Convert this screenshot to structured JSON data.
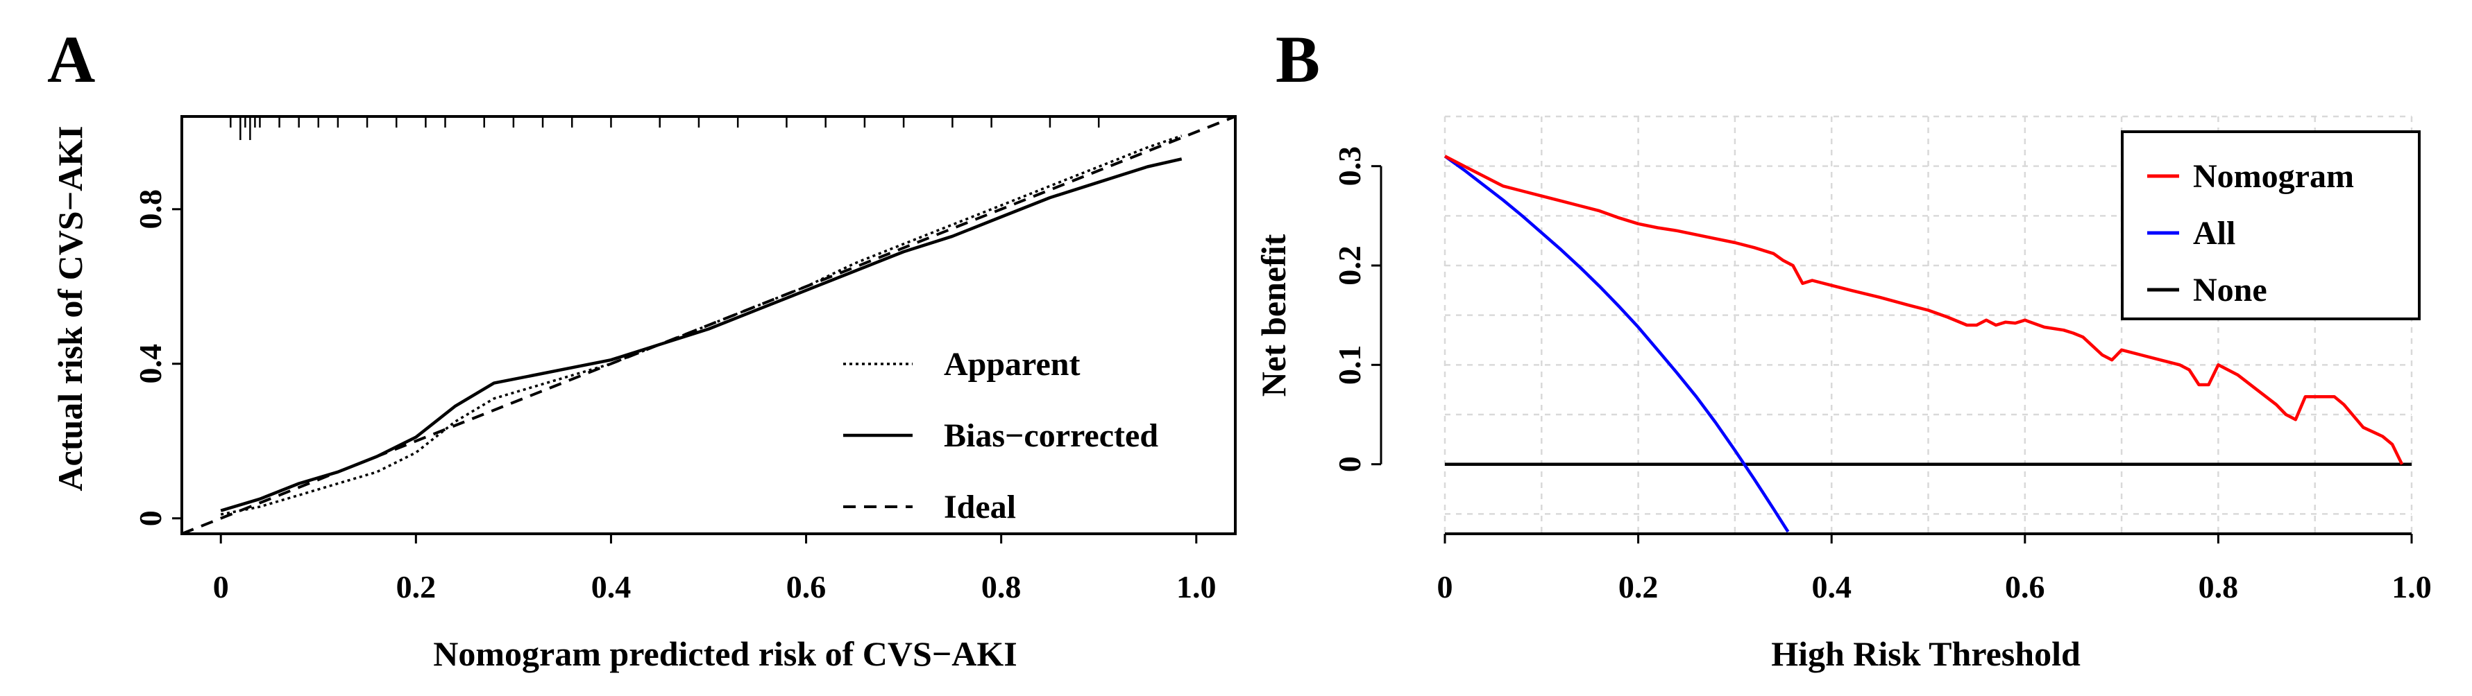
{
  "chart_data": [
    {
      "panel": "A",
      "type": "line",
      "xlabel": "Nomogram predicted risk of CVS−AKI",
      "ylabel": "Actual risk of CVS−AKI",
      "xlim": [
        -0.04,
        1.04
      ],
      "ylim": [
        -0.04,
        1.04
      ],
      "xticks": [
        "0",
        "0.2",
        "0.4",
        "0.6",
        "0.8",
        "1.0"
      ],
      "xtick_values": [
        0,
        0.2,
        0.4,
        0.6,
        0.8,
        1.0
      ],
      "yticks": [
        "0",
        "0.4",
        "0.8"
      ],
      "ytick_values": [
        0,
        0.4,
        0.8
      ],
      "legend": {
        "position": "bottom-right",
        "entries": [
          "Apparent",
          "Bias−corrected",
          "Ideal"
        ]
      },
      "series": [
        {
          "name": "Apparent",
          "style": "dotted",
          "x": [
            0,
            0.04,
            0.08,
            0.12,
            0.16,
            0.2,
            0.24,
            0.28,
            0.32,
            0.36,
            0.4,
            0.45,
            0.5,
            0.55,
            0.6,
            0.65,
            0.7,
            0.75,
            0.8,
            0.85,
            0.9,
            0.95,
            0.985
          ],
          "values": [
            0.01,
            0.03,
            0.06,
            0.09,
            0.12,
            0.17,
            0.25,
            0.31,
            0.34,
            0.37,
            0.4,
            0.45,
            0.5,
            0.55,
            0.6,
            0.66,
            0.71,
            0.76,
            0.81,
            0.86,
            0.91,
            0.96,
            0.99
          ]
        },
        {
          "name": "Bias−corrected",
          "style": "solid",
          "x": [
            0,
            0.04,
            0.08,
            0.12,
            0.16,
            0.2,
            0.24,
            0.28,
            0.32,
            0.36,
            0.4,
            0.45,
            0.5,
            0.55,
            0.6,
            0.65,
            0.7,
            0.75,
            0.8,
            0.85,
            0.9,
            0.95,
            0.985
          ],
          "values": [
            0.02,
            0.05,
            0.09,
            0.12,
            0.16,
            0.21,
            0.29,
            0.35,
            0.37,
            0.39,
            0.41,
            0.45,
            0.49,
            0.54,
            0.59,
            0.64,
            0.69,
            0.73,
            0.78,
            0.83,
            0.87,
            0.91,
            0.93
          ]
        },
        {
          "name": "Ideal",
          "style": "dashed",
          "x": [
            -0.04,
            1.04
          ],
          "values": [
            -0.04,
            1.04
          ]
        }
      ],
      "rug_x": [
        0.01,
        0.02,
        0.025,
        0.03,
        0.035,
        0.04,
        0.06,
        0.08,
        0.1,
        0.12,
        0.15,
        0.18,
        0.21,
        0.23,
        0.27,
        0.3,
        0.33,
        0.36,
        0.4,
        0.45,
        0.49,
        0.53,
        0.58,
        0.62,
        0.66,
        0.7,
        0.75,
        0.79,
        0.85,
        0.9
      ],
      "rug_long": [
        0.02,
        0.03
      ]
    },
    {
      "panel": "B",
      "type": "line",
      "xlabel": "High Risk Threshold",
      "ylabel": "Net benefit",
      "xlim": [
        0,
        1.0
      ],
      "ylim": [
        -0.07,
        0.35
      ],
      "xticks": [
        "0",
        "0.2",
        "0.4",
        "0.6",
        "0.8",
        "1.0"
      ],
      "xtick_values": [
        0,
        0.2,
        0.4,
        0.6,
        0.8,
        1.0
      ],
      "yticks": [
        "0",
        "0.1",
        "0.2",
        "0.3"
      ],
      "ytick_values": [
        0,
        0.1,
        0.2,
        0.3
      ],
      "grid": true,
      "legend": {
        "position": "top-right",
        "entries": [
          "Nomogram",
          "All",
          "None"
        ]
      },
      "series": [
        {
          "name": "Nomogram",
          "color": "#ff0000",
          "x": [
            0,
            0.02,
            0.04,
            0.06,
            0.08,
            0.1,
            0.12,
            0.14,
            0.16,
            0.18,
            0.2,
            0.22,
            0.24,
            0.26,
            0.28,
            0.3,
            0.32,
            0.34,
            0.35,
            0.36,
            0.37,
            0.38,
            0.4,
            0.42,
            0.45,
            0.48,
            0.5,
            0.52,
            0.54,
            0.55,
            0.56,
            0.57,
            0.58,
            0.59,
            0.6,
            0.62,
            0.64,
            0.65,
            0.66,
            0.68,
            0.69,
            0.7,
            0.72,
            0.74,
            0.76,
            0.77,
            0.78,
            0.79,
            0.8,
            0.82,
            0.84,
            0.86,
            0.87,
            0.88,
            0.89,
            0.9,
            0.91,
            0.92,
            0.93,
            0.95,
            0.97,
            0.98,
            0.99
          ],
          "values": [
            0.31,
            0.3,
            0.29,
            0.28,
            0.275,
            0.27,
            0.265,
            0.26,
            0.255,
            0.248,
            0.242,
            0.238,
            0.235,
            0.231,
            0.227,
            0.223,
            0.218,
            0.212,
            0.205,
            0.2,
            0.182,
            0.185,
            0.18,
            0.175,
            0.168,
            0.16,
            0.155,
            0.148,
            0.14,
            0.14,
            0.145,
            0.14,
            0.143,
            0.142,
            0.145,
            0.138,
            0.135,
            0.132,
            0.128,
            0.11,
            0.105,
            0.115,
            0.11,
            0.105,
            0.1,
            0.095,
            0.08,
            0.08,
            0.1,
            0.09,
            0.075,
            0.06,
            0.05,
            0.045,
            0.068,
            0.068,
            0.068,
            0.068,
            0.06,
            0.037,
            0.028,
            0.02,
            0.0
          ]
        },
        {
          "name": "All",
          "color": "#0000ff",
          "x": [
            0,
            0.02,
            0.04,
            0.06,
            0.08,
            0.1,
            0.12,
            0.14,
            0.16,
            0.18,
            0.2,
            0.22,
            0.24,
            0.26,
            0.28,
            0.3,
            0.32,
            0.34,
            0.355
          ],
          "values": [
            0.31,
            0.296,
            0.281,
            0.266,
            0.25,
            0.233,
            0.216,
            0.198,
            0.179,
            0.159,
            0.138,
            0.115,
            0.092,
            0.068,
            0.042,
            0.014,
            -0.015,
            -0.045,
            -0.068
          ]
        },
        {
          "name": "None",
          "color": "#000000",
          "x": [
            0,
            1.0
          ],
          "values": [
            0,
            0
          ]
        }
      ]
    }
  ],
  "panels": {
    "a": {
      "label": "A"
    },
    "b": {
      "label": "B"
    }
  }
}
